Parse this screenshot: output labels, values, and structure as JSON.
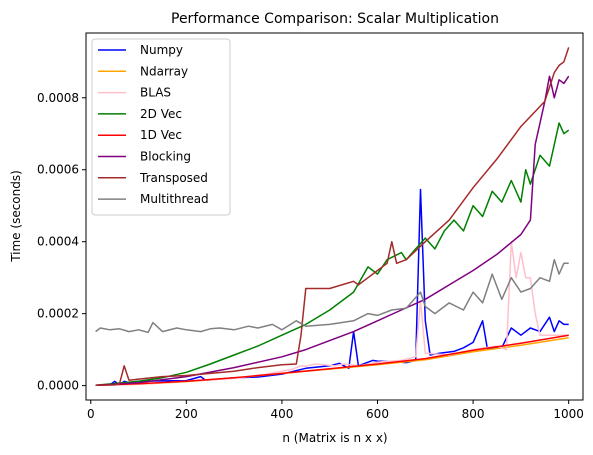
{
  "chart_data": {
    "type": "line",
    "title": "Performance Comparison: Scalar Multiplication",
    "xlabel": "n (Matrix is n x x)",
    "ylabel": "Time (seconds)",
    "xlim": [
      -10,
      1030
    ],
    "ylim": [
      -4e-05,
      0.00098
    ],
    "xticks": [
      0,
      200,
      400,
      600,
      800,
      1000
    ],
    "xtick_labels": [
      "0",
      "200",
      "400",
      "600",
      "800",
      "1000"
    ],
    "yticks": [
      0,
      0.0002,
      0.0004,
      0.0006,
      0.0008
    ],
    "ytick_labels": [
      "0.0000",
      "0.0002",
      "0.0004",
      "0.0006",
      "0.0008"
    ],
    "grid": false,
    "legend_position": "upper-left",
    "series": [
      {
        "name": "Numpy",
        "color": "#0000ff",
        "points": [
          [
            10,
            1e-06
          ],
          [
            40,
            2e-06
          ],
          [
            50,
            1.2e-05
          ],
          [
            60,
            2e-06
          ],
          [
            70,
            1.2e-05
          ],
          [
            80,
            8e-06
          ],
          [
            100,
            1.2e-05
          ],
          [
            150,
            1.3e-05
          ],
          [
            200,
            1.4e-05
          ],
          [
            230,
            2.5e-05
          ],
          [
            240,
            1.5e-05
          ],
          [
            300,
            2.2e-05
          ],
          [
            350,
            2.4e-05
          ],
          [
            400,
            3.2e-05
          ],
          [
            450,
            4.8e-05
          ],
          [
            500,
            5.5e-05
          ],
          [
            520,
            6.2e-05
          ],
          [
            540,
            4.8e-05
          ],
          [
            550,
            0.00015
          ],
          [
            560,
            5.5e-05
          ],
          [
            590,
            7e-05
          ],
          [
            600,
            6.8e-05
          ],
          [
            640,
            6.6e-05
          ],
          [
            660,
            6.4e-05
          ],
          [
            680,
            7e-05
          ],
          [
            690,
            0.000545
          ],
          [
            700,
            0.00018
          ],
          [
            710,
            8.5e-05
          ],
          [
            730,
            9e-05
          ],
          [
            760,
            9.5e-05
          ],
          [
            780,
            0.000105
          ],
          [
            800,
            0.00012
          ],
          [
            820,
            0.00018
          ],
          [
            830,
            0.000102
          ],
          [
            860,
            0.000105
          ],
          [
            880,
            0.00016
          ],
          [
            900,
            0.00014
          ],
          [
            920,
            0.00016
          ],
          [
            940,
            0.00015
          ],
          [
            960,
            0.00019
          ],
          [
            970,
            0.00015
          ],
          [
            980,
            0.00018
          ],
          [
            990,
            0.00017
          ],
          [
            1000,
            0.00017
          ]
        ]
      },
      {
        "name": "Ndarray",
        "color": "#ffa500",
        "points": [
          [
            10,
            1e-06
          ],
          [
            100,
            4e-06
          ],
          [
            200,
            1.1e-05
          ],
          [
            300,
            2.1e-05
          ],
          [
            400,
            3.4e-05
          ],
          [
            500,
            4.6e-05
          ],
          [
            600,
            5.8e-05
          ],
          [
            700,
            7.2e-05
          ],
          [
            800,
            9.4e-05
          ],
          [
            900,
            0.000112
          ],
          [
            1000,
            0.000133
          ]
        ]
      },
      {
        "name": "BLAS",
        "color": "#ffc0cb",
        "points": [
          [
            10,
            1e-06
          ],
          [
            100,
            4e-06
          ],
          [
            200,
            1.2e-05
          ],
          [
            300,
            2e-05
          ],
          [
            360,
            3e-05
          ],
          [
            420,
            4.5e-05
          ],
          [
            440,
            5.5e-05
          ],
          [
            450,
            5.4e-05
          ],
          [
            470,
            6e-05
          ],
          [
            510,
            5.5e-05
          ],
          [
            530,
            6e-05
          ],
          [
            560,
            5.5e-05
          ],
          [
            600,
            6.5e-05
          ],
          [
            650,
            7e-05
          ],
          [
            680,
            8e-05
          ],
          [
            690,
            0.000235
          ],
          [
            700,
            9e-05
          ],
          [
            750,
            8.5e-05
          ],
          [
            800,
            0.0001
          ],
          [
            850,
            0.00011
          ],
          [
            870,
            0.0001
          ],
          [
            880,
            0.0004
          ],
          [
            890,
            0.0003
          ],
          [
            900,
            0.00037
          ],
          [
            910,
            0.0003
          ],
          [
            920,
            0.0003
          ],
          [
            930,
            0.0002
          ],
          [
            940,
            0.00014
          ],
          [
            1000,
            0.00014
          ]
        ]
      },
      {
        "name": "2D Vec",
        "color": "#008000",
        "points": [
          [
            10,
            1e-06
          ],
          [
            100,
            1.2e-05
          ],
          [
            150,
            2.2e-05
          ],
          [
            200,
            3.7e-05
          ],
          [
            250,
            6e-05
          ],
          [
            300,
            8.5e-05
          ],
          [
            350,
            0.00011
          ],
          [
            400,
            0.00014
          ],
          [
            450,
            0.00017
          ],
          [
            500,
            0.00021
          ],
          [
            550,
            0.00026
          ],
          [
            580,
            0.00033
          ],
          [
            600,
            0.00031
          ],
          [
            620,
            0.00035
          ],
          [
            650,
            0.00037
          ],
          [
            660,
            0.00035
          ],
          [
            680,
            0.00038
          ],
          [
            700,
            0.00041
          ],
          [
            720,
            0.00038
          ],
          [
            740,
            0.00043
          ],
          [
            760,
            0.00046
          ],
          [
            780,
            0.00043
          ],
          [
            800,
            0.0005
          ],
          [
            820,
            0.00047
          ],
          [
            840,
            0.00054
          ],
          [
            860,
            0.00051
          ],
          [
            880,
            0.00057
          ],
          [
            900,
            0.00051
          ],
          [
            910,
            0.0006
          ],
          [
            920,
            0.00056
          ],
          [
            940,
            0.00064
          ],
          [
            960,
            0.00061
          ],
          [
            980,
            0.00073
          ],
          [
            990,
            0.0007
          ],
          [
            1000,
            0.00071
          ]
        ]
      },
      {
        "name": "1D Vec",
        "color": "#ff0000",
        "points": [
          [
            10,
            1e-06
          ],
          [
            100,
            5e-06
          ],
          [
            200,
            1.2e-05
          ],
          [
            300,
            2.2e-05
          ],
          [
            400,
            3.4e-05
          ],
          [
            500,
            4.7e-05
          ],
          [
            600,
            6e-05
          ],
          [
            700,
            7.5e-05
          ],
          [
            800,
            9.8e-05
          ],
          [
            900,
            0.000118
          ],
          [
            1000,
            0.00014
          ]
        ]
      },
      {
        "name": "Blocking",
        "color": "#800080",
        "points": [
          [
            10,
            1e-06
          ],
          [
            100,
            8e-06
          ],
          [
            200,
            2.5e-05
          ],
          [
            300,
            5e-05
          ],
          [
            400,
            8e-05
          ],
          [
            450,
            0.0001
          ],
          [
            500,
            0.000125
          ],
          [
            550,
            0.00015
          ],
          [
            600,
            0.00018
          ],
          [
            650,
            0.00021
          ],
          [
            700,
            0.00024
          ],
          [
            750,
            0.00028
          ],
          [
            800,
            0.00032
          ],
          [
            850,
            0.000365
          ],
          [
            900,
            0.00042
          ],
          [
            920,
            0.00046
          ],
          [
            930,
            0.00067
          ],
          [
            940,
            0.00073
          ],
          [
            950,
            0.00079
          ],
          [
            960,
            0.00086
          ],
          [
            970,
            0.0008
          ],
          [
            980,
            0.00085
          ],
          [
            990,
            0.00084
          ],
          [
            1000,
            0.00086
          ]
        ]
      },
      {
        "name": "Transposed",
        "color": "#a52a2a",
        "points": [
          [
            10,
            1e-06
          ],
          [
            50,
            2e-06
          ],
          [
            60,
            5e-06
          ],
          [
            70,
            5.5e-05
          ],
          [
            80,
            1.5e-05
          ],
          [
            100,
            1.8e-05
          ],
          [
            150,
            2.5e-05
          ],
          [
            200,
            2.8e-05
          ],
          [
            300,
            4e-05
          ],
          [
            350,
            5e-05
          ],
          [
            400,
            5.8e-05
          ],
          [
            430,
            6e-05
          ],
          [
            440,
            0.00014
          ],
          [
            450,
            0.00027
          ],
          [
            500,
            0.00027
          ],
          [
            550,
            0.00029
          ],
          [
            560,
            0.00028
          ],
          [
            580,
            0.0003
          ],
          [
            600,
            0.00032
          ],
          [
            620,
            0.00034
          ],
          [
            630,
            0.0004
          ],
          [
            640,
            0.00034
          ],
          [
            660,
            0.00035
          ],
          [
            700,
            0.0004
          ],
          [
            750,
            0.00046
          ],
          [
            800,
            0.00055
          ],
          [
            850,
            0.00063
          ],
          [
            900,
            0.00072
          ],
          [
            950,
            0.00079
          ],
          [
            970,
            0.00087
          ],
          [
            980,
            0.00089
          ],
          [
            990,
            0.0009
          ],
          [
            1000,
            0.00094
          ]
        ]
      },
      {
        "name": "Multithread",
        "color": "#808080",
        "points": [
          [
            10,
            0.00015
          ],
          [
            20,
            0.00016
          ],
          [
            40,
            0.000155
          ],
          [
            60,
            0.000158
          ],
          [
            80,
            0.00015
          ],
          [
            100,
            0.000155
          ],
          [
            120,
            0.000148
          ],
          [
            130,
            0.000175
          ],
          [
            150,
            0.00015
          ],
          [
            180,
            0.00016
          ],
          [
            200,
            0.000155
          ],
          [
            230,
            0.00015
          ],
          [
            250,
            0.000158
          ],
          [
            270,
            0.00016
          ],
          [
            300,
            0.000155
          ],
          [
            330,
            0.000165
          ],
          [
            350,
            0.00016
          ],
          [
            380,
            0.00017
          ],
          [
            400,
            0.000155
          ],
          [
            430,
            0.00018
          ],
          [
            450,
            0.000165
          ],
          [
            500,
            0.00017
          ],
          [
            550,
            0.00018
          ],
          [
            580,
            0.0002
          ],
          [
            600,
            0.000195
          ],
          [
            630,
            0.00021
          ],
          [
            660,
            0.000215
          ],
          [
            690,
            0.00026
          ],
          [
            700,
            0.00022
          ],
          [
            720,
            0.0002
          ],
          [
            750,
            0.00023
          ],
          [
            780,
            0.00021
          ],
          [
            800,
            0.00026
          ],
          [
            820,
            0.00023
          ],
          [
            840,
            0.00031
          ],
          [
            860,
            0.00024
          ],
          [
            880,
            0.0003
          ],
          [
            900,
            0.00026
          ],
          [
            920,
            0.00027
          ],
          [
            940,
            0.0003
          ],
          [
            960,
            0.00029
          ],
          [
            970,
            0.00035
          ],
          [
            980,
            0.00031
          ],
          [
            990,
            0.00034
          ],
          [
            1000,
            0.00034
          ]
        ]
      }
    ]
  }
}
